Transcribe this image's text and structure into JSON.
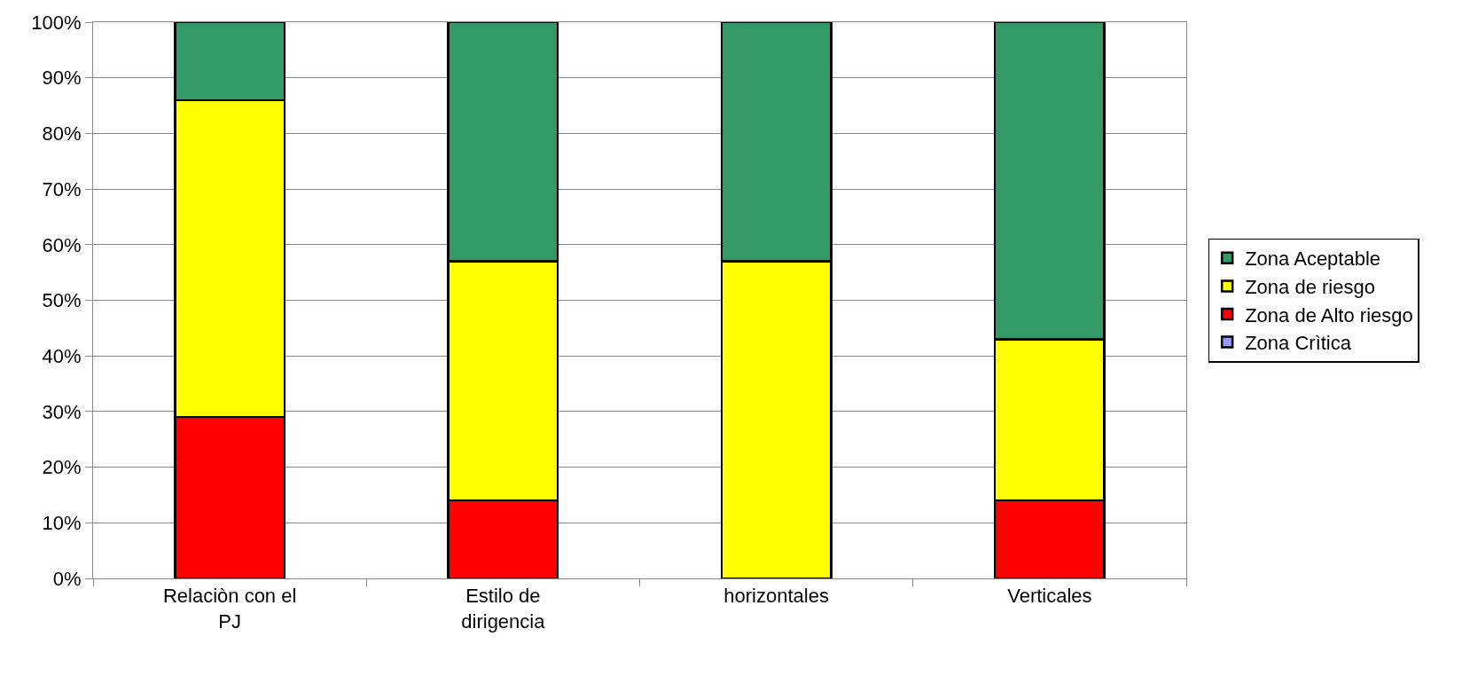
{
  "chart_data": {
    "type": "bar",
    "stacked": true,
    "categories": [
      "Relaciòn con el PJ",
      "Estilo de dirigencia",
      "horizontales",
      "Verticales"
    ],
    "series": [
      {
        "name": "Zona Crìtica",
        "color": "#9999ff",
        "values": [
          0,
          0,
          0,
          0
        ]
      },
      {
        "name": "Zona de Alto riesgo",
        "color": "#ff0000",
        "values": [
          29,
          14,
          0,
          14
        ]
      },
      {
        "name": "Zona de riesgo",
        "color": "#ffff00",
        "values": [
          57,
          43,
          57,
          29
        ]
      },
      {
        "name": "Zona Aceptable",
        "color": "#339966",
        "values": [
          14,
          43,
          43,
          57
        ]
      }
    ],
    "ylim": [
      0,
      100
    ],
    "yticks": [
      {
        "value": 0,
        "label": "0%"
      },
      {
        "value": 10,
        "label": "10%"
      },
      {
        "value": 20,
        "label": "20%"
      },
      {
        "value": 30,
        "label": "30%"
      },
      {
        "value": 40,
        "label": "40%"
      },
      {
        "value": 50,
        "label": "50%"
      },
      {
        "value": 60,
        "label": "60%"
      },
      {
        "value": 70,
        "label": "70%"
      },
      {
        "value": 80,
        "label": "80%"
      },
      {
        "value": 90,
        "label": "90%"
      },
      {
        "value": 100,
        "label": "100%"
      }
    ],
    "grid": "y",
    "legend": "right"
  }
}
